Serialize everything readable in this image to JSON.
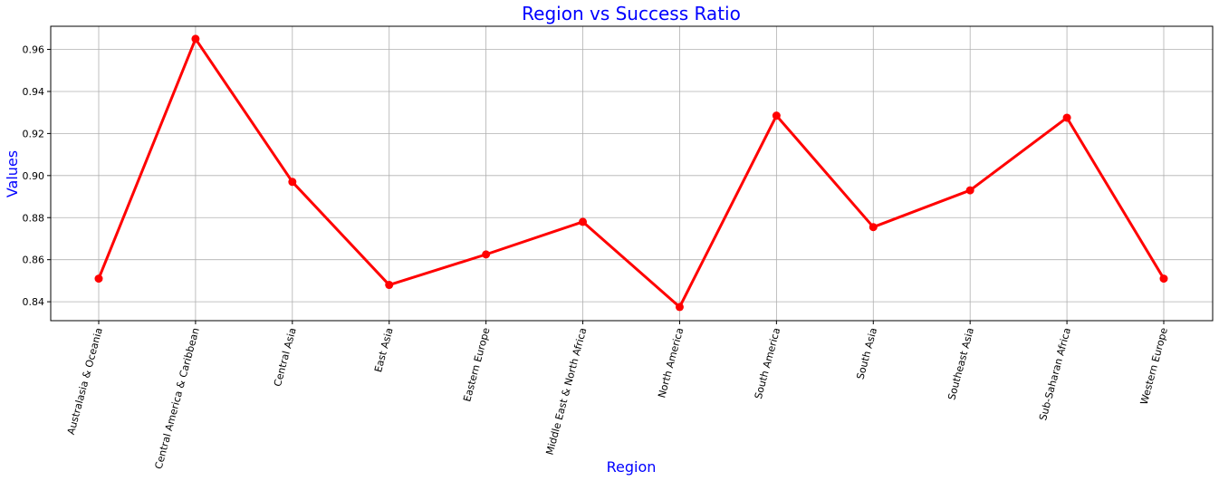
{
  "chart_data": {
    "type": "line",
    "title": "Region vs Success Ratio",
    "xlabel": "Region",
    "ylabel": "Values",
    "categories": [
      "Australasia & Oceania",
      "Central America & Caribbean",
      "Central Asia",
      "East Asia",
      "Eastern Europe",
      "Middle East & North Africa",
      "North America",
      "South America",
      "South Asia",
      "Southeast Asia",
      "Sub-Saharan Africa",
      "Western Europe"
    ],
    "values": [
      0.851,
      0.965,
      0.897,
      0.848,
      0.8625,
      0.878,
      0.8375,
      0.9285,
      0.8755,
      0.893,
      0.9275,
      0.851
    ],
    "yticks": [
      "0.84",
      "0.86",
      "0.88",
      "0.90",
      "0.92",
      "0.94",
      "0.96"
    ],
    "ylim": [
      0.831,
      0.971
    ],
    "grid": true,
    "colors": {
      "line": "#ff0000",
      "title": "#0000ff",
      "axis_label": "#0000ff",
      "grid": "#b0b0b0"
    }
  }
}
